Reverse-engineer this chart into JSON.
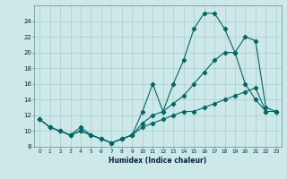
{
  "xlabel": "Humidex (Indice chaleur)",
  "bg_color": "#cce8e8",
  "grid_color": "#aacccc",
  "line_color": "#006666",
  "xlim": [
    -0.5,
    23.5
  ],
  "ylim": [
    8,
    26
  ],
  "yticks": [
    8,
    10,
    12,
    14,
    16,
    18,
    20,
    22,
    24
  ],
  "xticks": [
    0,
    1,
    2,
    3,
    4,
    5,
    6,
    7,
    8,
    9,
    10,
    11,
    12,
    13,
    14,
    15,
    16,
    17,
    18,
    19,
    20,
    21,
    22,
    23
  ],
  "series1_y": [
    11.5,
    10.5,
    10.0,
    9.5,
    10.0,
    9.5,
    9.0,
    8.5,
    9.0,
    9.5,
    12.5,
    16.0,
    12.5,
    16.0,
    19.0,
    23.0,
    25.0,
    25.0,
    23.0,
    20.0,
    16.0,
    14.0,
    12.5,
    12.5
  ],
  "series2_y": [
    11.5,
    10.5,
    10.0,
    9.5,
    10.5,
    9.5,
    9.0,
    8.5,
    9.0,
    9.5,
    11.0,
    12.0,
    12.5,
    13.5,
    14.5,
    16.0,
    17.5,
    19.0,
    20.0,
    20.0,
    22.0,
    21.5,
    13.0,
    12.5
  ],
  "series3_y": [
    11.5,
    10.5,
    10.0,
    9.5,
    10.0,
    9.5,
    9.0,
    8.5,
    9.0,
    9.5,
    10.5,
    11.0,
    11.5,
    12.0,
    12.5,
    12.5,
    13.0,
    13.5,
    14.0,
    14.5,
    15.0,
    15.5,
    12.5,
    12.5
  ]
}
